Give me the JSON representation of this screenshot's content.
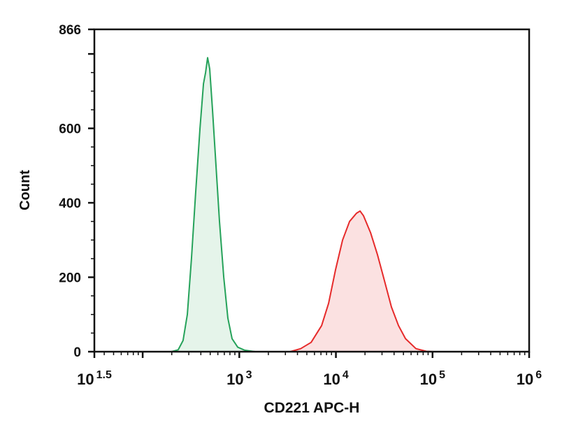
{
  "chart_data": {
    "type": "area",
    "title": "",
    "xlabel": "CD221 APC-H",
    "ylabel": "Count",
    "x_scale": "log",
    "xlim_log10": [
      1.5,
      6
    ],
    "ylim": [
      0,
      866
    ],
    "x_tick_labels": [
      {
        "base": "10",
        "exp": "1.5",
        "log10": 1.5
      },
      {
        "base": "10",
        "exp": "3",
        "log10": 3
      },
      {
        "base": "10",
        "exp": "4",
        "log10": 4
      },
      {
        "base": "10",
        "exp": "5",
        "log10": 5
      },
      {
        "base": "10",
        "exp": "6",
        "log10": 6
      }
    ],
    "y_ticks": [
      0,
      200,
      400,
      600,
      866
    ],
    "y_tick_labels": [
      "0",
      "200",
      "400",
      "600",
      "866"
    ],
    "grid": false,
    "legend": "none",
    "series": [
      {
        "color": "#25a25a",
        "fill": "#e5f4ea",
        "x": [
          198,
          233,
          262,
          290,
          320,
          354,
          392,
          426,
          448,
          470,
          494,
          528,
          574,
          624,
          690,
          762,
          842,
          963,
          1138,
          1460
        ],
        "y": [
          0,
          5,
          30,
          100,
          250,
          430,
          600,
          720,
          750,
          790,
          760,
          650,
          500,
          350,
          200,
          90,
          35,
          12,
          4,
          0
        ]
      },
      {
        "color": "#e62a2a",
        "fill": "#fbe1e1",
        "x": [
          3357,
          4315,
          5537,
          7108,
          8395,
          9910,
          11720,
          13840,
          16340,
          17780,
          19320,
          22810,
          26980,
          31840,
          37580,
          44460,
          52480,
          67420,
          86500,
          102100
        ],
        "y": [
          0,
          8,
          25,
          70,
          130,
          220,
          300,
          350,
          372,
          378,
          365,
          320,
          260,
          190,
          120,
          70,
          35,
          8,
          1,
          0
        ]
      }
    ]
  }
}
